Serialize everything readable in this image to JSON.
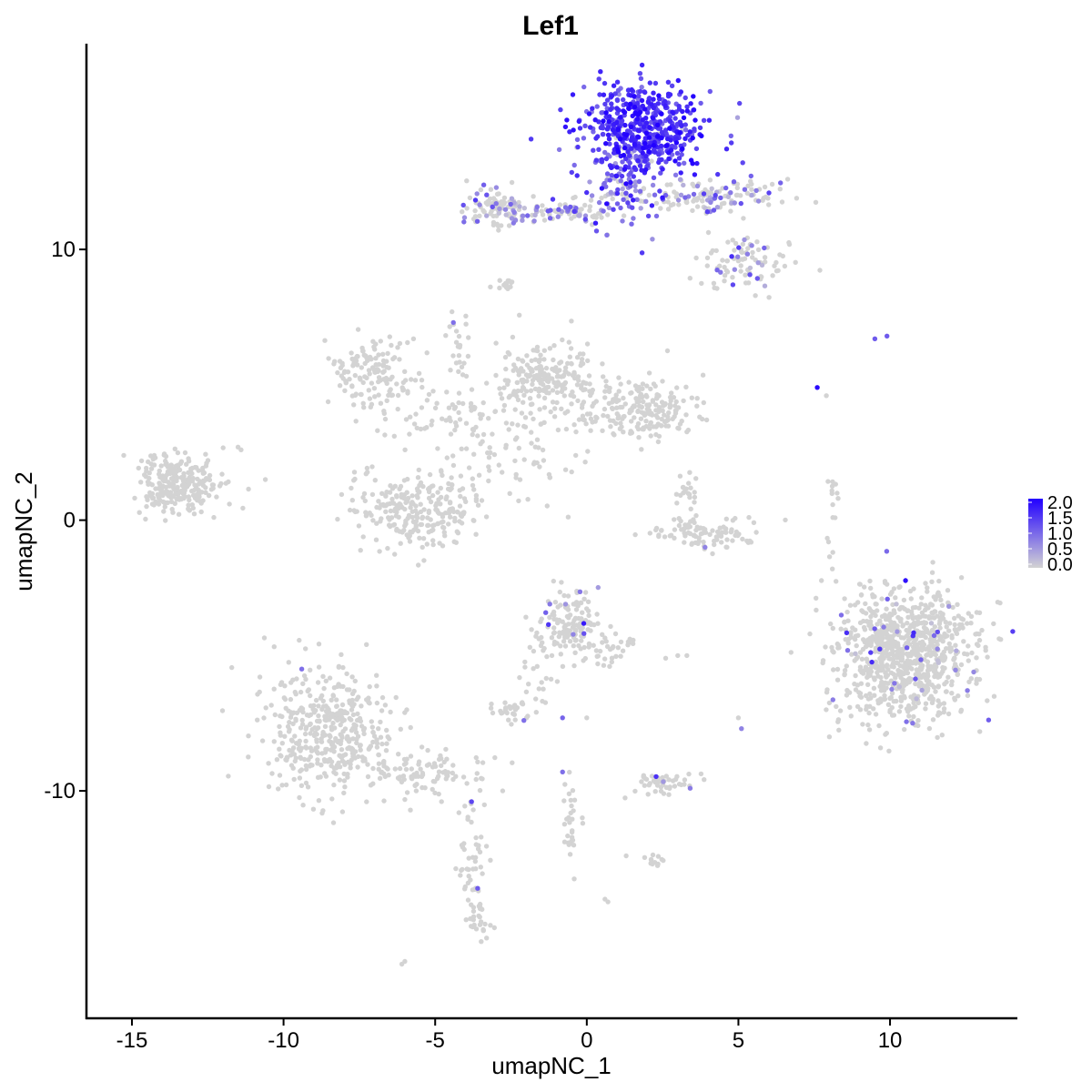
{
  "chart_data": {
    "type": "scatter",
    "title": "Lef1",
    "xlabel": "umapNC_1",
    "ylabel": "umapNC_2",
    "xlim": [
      -16.5,
      14.2
    ],
    "ylim": [
      -18.4,
      17.6
    ],
    "x_ticks": [
      -15,
      -10,
      -5,
      0,
      5,
      10
    ],
    "x_tick_labels": [
      "-15",
      "-10",
      "-5",
      "0",
      "5",
      "10"
    ],
    "y_ticks": [
      10,
      0,
      -10
    ],
    "y_tick_labels": [
      "10",
      "0",
      "-10"
    ],
    "grid": false,
    "legend_position": "right",
    "color_scale": {
      "low_color": "#d3d3d3",
      "high_color": "#2200ff",
      "breaks": [
        2.0,
        1.5,
        1.0,
        0.5,
        0.0
      ],
      "labels": [
        "2.0",
        "1.5",
        "1.0",
        "0.5",
        "0.0"
      ],
      "min": 0.0,
      "max": 2.1
    },
    "point_color": "#d3d3d3",
    "clusters": [
      {
        "name": "top-cluster-head",
        "cx": 1.8,
        "cy": 14.4,
        "sx": 1.0,
        "sy": 0.85,
        "n": 550,
        "expr_mean": 1.55,
        "expr_sd": 0.35,
        "expr_frac": 0.97
      },
      {
        "name": "top-stem",
        "cx": 1.2,
        "cy": 12.3,
        "sx": 0.45,
        "sy": 0.7,
        "n": 100,
        "expr_mean": 1.0,
        "expr_sd": 0.4,
        "expr_frac": 0.7
      },
      {
        "name": "top-left-arm",
        "cx": -1.5,
        "cy": 11.4,
        "sx": 1.3,
        "sy": 0.25,
        "n": 120,
        "expr_mean": 0.8,
        "expr_sd": 0.4,
        "expr_frac": 0.45
      },
      {
        "name": "top-left-end",
        "cx": -3.0,
        "cy": 11.6,
        "sx": 0.5,
        "sy": 0.4,
        "n": 60,
        "expr_mean": 0.8,
        "expr_sd": 0.4,
        "expr_frac": 0.3
      },
      {
        "name": "top-right-arm",
        "cx": 4.3,
        "cy": 12.0,
        "sx": 1.2,
        "sy": 0.35,
        "n": 130,
        "expr_mean": 0.8,
        "expr_sd": 0.4,
        "expr_frac": 0.35
      },
      {
        "name": "top-right-lower",
        "cx": 5.2,
        "cy": 9.6,
        "sx": 0.8,
        "sy": 0.5,
        "n": 90,
        "expr_mean": 0.8,
        "expr_sd": 0.4,
        "expr_frac": 0.15
      },
      {
        "name": "small-10-left",
        "cx": -2.7,
        "cy": 8.7,
        "sx": 0.2,
        "sy": 0.15,
        "n": 15,
        "expr_mean": 0.0,
        "expr_sd": 0.0,
        "expr_frac": 0.0
      },
      {
        "name": "upper-left-cluster",
        "cx": -7.0,
        "cy": 5.4,
        "sx": 0.8,
        "sy": 0.6,
        "n": 140,
        "expr_mean": 0.0,
        "expr_sd": 0.0,
        "expr_frac": 0.0
      },
      {
        "name": "upper-center-cluster",
        "cx": -1.4,
        "cy": 5.3,
        "sx": 0.8,
        "sy": 0.65,
        "n": 200,
        "expr_mean": 0.0,
        "expr_sd": 0.0,
        "expr_frac": 0.0
      },
      {
        "name": "upper-right-cluster",
        "cx": 1.8,
        "cy": 4.2,
        "sx": 1.0,
        "sy": 0.55,
        "n": 220,
        "expr_mean": 0.0,
        "expr_sd": 0.0,
        "expr_frac": 0.0
      },
      {
        "name": "upper-bridge",
        "cx": -4.2,
        "cy": 3.8,
        "sx": 1.6,
        "sy": 0.5,
        "n": 90,
        "expr_mean": 0.0,
        "expr_sd": 0.0,
        "expr_frac": 0.0
      },
      {
        "name": "upper-stalk",
        "cx": -4.2,
        "cy": 6.5,
        "sx": 0.25,
        "sy": 0.9,
        "n": 25,
        "expr_mean": 0.0,
        "expr_sd": 0.0,
        "expr_frac": 0.0
      },
      {
        "name": "center-left-cup",
        "cx": -5.6,
        "cy": 0.4,
        "sx": 1.1,
        "sy": 0.65,
        "n": 260,
        "expr_mean": 0.0,
        "expr_sd": 0.0,
        "expr_frac": 0.0
      },
      {
        "name": "center-spread",
        "cx": -2.5,
        "cy": 2.2,
        "sx": 1.3,
        "sy": 0.8,
        "n": 60,
        "expr_mean": 0.0,
        "expr_sd": 0.0,
        "expr_frac": 0.0
      },
      {
        "name": "far-left-cluster",
        "cx": -13.5,
        "cy": 1.3,
        "sx": 0.7,
        "sy": 0.6,
        "n": 260,
        "expr_mean": 0.0,
        "expr_sd": 0.0,
        "expr_frac": 0.0
      },
      {
        "name": "right-small-arc",
        "cx": 3.9,
        "cy": -0.5,
        "sx": 0.9,
        "sy": 0.25,
        "n": 90,
        "expr_mean": 0.0,
        "expr_sd": 0.0,
        "expr_frac": 0.0
      },
      {
        "name": "right-small-upper",
        "cx": 3.3,
        "cy": 0.9,
        "sx": 0.3,
        "sy": 0.5,
        "n": 25,
        "expr_mean": 0.0,
        "expr_sd": 0.0,
        "expr_frac": 0.0
      },
      {
        "name": "far-right-cluster",
        "cx": 10.5,
        "cy": -4.9,
        "sx": 1.15,
        "sy": 1.2,
        "n": 900,
        "expr_mean": 0.9,
        "expr_sd": 0.5,
        "expr_frac": 0.03
      },
      {
        "name": "far-right-stalk",
        "cx": 8.1,
        "cy": 0.4,
        "sx": 0.15,
        "sy": 0.8,
        "n": 15,
        "expr_mean": 0.0,
        "expr_sd": 0.0,
        "expr_frac": 0.0
      },
      {
        "name": "center-lower-cluster",
        "cx": -0.5,
        "cy": -3.8,
        "sx": 0.55,
        "sy": 0.6,
        "n": 140,
        "expr_mean": 0.9,
        "expr_sd": 0.4,
        "expr_frac": 0.07
      },
      {
        "name": "center-lower-tail",
        "cx": 0.8,
        "cy": -4.8,
        "sx": 0.4,
        "sy": 0.5,
        "n": 30,
        "expr_mean": 0.0,
        "expr_sd": 0.0,
        "expr_frac": 0.0
      },
      {
        "name": "lower-left-cluster",
        "cx": -8.5,
        "cy": -7.8,
        "sx": 1.1,
        "sy": 1.25,
        "n": 420,
        "expr_mean": 0.0,
        "expr_sd": 0.0,
        "expr_frac": 0.0
      },
      {
        "name": "lower-left-tail",
        "cx": -5.6,
        "cy": -9.4,
        "sx": 1.2,
        "sy": 0.45,
        "n": 110,
        "expr_mean": 0.0,
        "expr_sd": 0.0,
        "expr_frac": 0.0
      },
      {
        "name": "lower-stem",
        "cx": -3.8,
        "cy": -12.5,
        "sx": 0.25,
        "sy": 1.5,
        "n": 50,
        "expr_mean": 0.0,
        "expr_sd": 0.0,
        "expr_frac": 0.0
      },
      {
        "name": "lower-stem-end",
        "cx": -3.5,
        "cy": -14.8,
        "sx": 0.2,
        "sy": 0.3,
        "n": 25,
        "expr_mean": 0.0,
        "expr_sd": 0.0,
        "expr_frac": 0.0
      },
      {
        "name": "small-mid-left",
        "cx": -2.5,
        "cy": -7.0,
        "sx": 0.3,
        "sy": 0.2,
        "n": 30,
        "expr_mean": 0.9,
        "expr_sd": 0.3,
        "expr_frac": 0.1
      },
      {
        "name": "connector-line",
        "cx": -1.6,
        "cy": -5.6,
        "sx": 0.3,
        "sy": 0.8,
        "n": 25,
        "expr_mean": 0.0,
        "expr_sd": 0.0,
        "expr_frac": 0.0
      },
      {
        "name": "small-lower-center",
        "cx": 2.5,
        "cy": -9.7,
        "sx": 0.5,
        "sy": 0.2,
        "n": 50,
        "expr_mean": 0.9,
        "expr_sd": 0.3,
        "expr_frac": 0.05
      },
      {
        "name": "vertical-line-lower",
        "cx": -0.6,
        "cy": -11.2,
        "sx": 0.15,
        "sy": 0.9,
        "n": 30,
        "expr_mean": 0.0,
        "expr_sd": 0.0,
        "expr_frac": 0.0
      },
      {
        "name": "tiny-lower-right",
        "cx": 2.3,
        "cy": -12.6,
        "sx": 0.15,
        "sy": 0.1,
        "n": 12,
        "expr_mean": 0.0,
        "expr_sd": 0.0,
        "expr_frac": 0.0
      }
    ],
    "highlight_points": [
      {
        "x": 7.6,
        "y": 4.9,
        "value": 2.0
      },
      {
        "x": 9.5,
        "y": 6.7,
        "value": 1.2
      },
      {
        "x": 9.9,
        "y": 6.8,
        "value": 1.2
      },
      {
        "x": -4.4,
        "y": 7.3,
        "value": 1.0
      },
      {
        "x": -3.8,
        "y": -10.4,
        "value": 1.4
      },
      {
        "x": -3.6,
        "y": -13.6,
        "value": 1.2
      },
      {
        "x": -9.4,
        "y": -5.5,
        "value": 1.0
      },
      {
        "x": -0.8,
        "y": -7.3,
        "value": 1.1
      },
      {
        "x": -0.8,
        "y": -9.3,
        "value": 1.0
      },
      {
        "x": 5.1,
        "y": -7.7,
        "value": 0.8
      },
      {
        "x": 3.9,
        "y": -1.0,
        "value": 0.8
      }
    ],
    "scatter_points": [
      {
        "x": -6.0,
        "y": -16.3
      },
      {
        "x": -6.1,
        "y": -16.4
      },
      {
        "x": 0.6,
        "y": -14.0
      },
      {
        "x": 0.7,
        "y": -14.1
      },
      {
        "x": 8.1,
        "y": -1.8
      },
      {
        "x": 7.9,
        "y": 4.6
      },
      {
        "x": -10.6,
        "y": 1.5
      },
      {
        "x": -11.4,
        "y": 2.6
      },
      {
        "x": -11.5,
        "y": 2.7
      },
      {
        "x": -12.3,
        "y": 0.1
      },
      {
        "x": 5.0,
        "y": -7.3
      },
      {
        "x": 3.3,
        "y": -5.0
      },
      {
        "x": 3.0,
        "y": -5.0
      },
      {
        "x": 2.6,
        "y": -5.1
      },
      {
        "x": 1.3,
        "y": -12.4
      },
      {
        "x": 0.0,
        "y": -7.3
      }
    ]
  }
}
